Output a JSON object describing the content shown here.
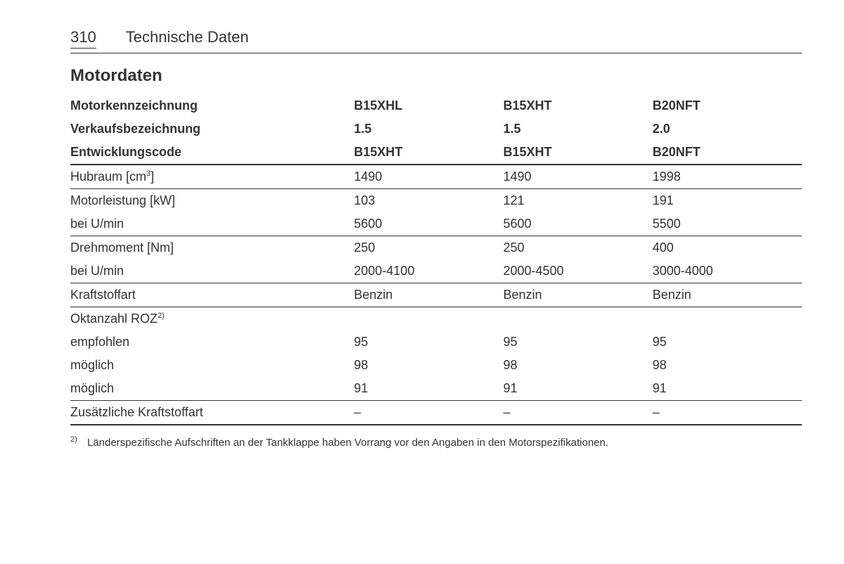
{
  "header": {
    "page_number": "310",
    "chapter": "Technische Daten"
  },
  "section_title": "Motordaten",
  "table": {
    "columns": [
      "",
      "B15XHL",
      "B15XHT",
      "B20NFT"
    ],
    "column_widths_pct": [
      38,
      20,
      20,
      22
    ],
    "text_color": "#333333",
    "background_color": "#ffffff",
    "border_color": "#333333",
    "font_size_pt": 13.5,
    "header_rows": [
      {
        "label": "Motorkennzeichnung",
        "v1": "B15XHL",
        "v2": "B15XHT",
        "v3": "B20NFT",
        "bold": true,
        "border": "none"
      },
      {
        "label": "Verkaufsbezeichnung",
        "v1": "1.5",
        "v2": "1.5",
        "v3": "2.0",
        "bold": true,
        "border": "none"
      },
      {
        "label": "Entwicklungscode",
        "v1": "B15XHT",
        "v2": "B15XHT",
        "v3": "B20NFT",
        "bold": true,
        "border": "thick"
      }
    ],
    "rows": [
      {
        "label_html": "Hubraum [cm<sup>3</sup>]",
        "label": "Hubraum [cm3]",
        "v1": "1490",
        "v2": "1490",
        "v3": "1998",
        "border": "thin"
      },
      {
        "label": "Motorleistung [kW]",
        "v1": "103",
        "v2": "121",
        "v3": "191",
        "border": "none"
      },
      {
        "label": "bei U/min",
        "v1": "5600",
        "v2": "5600",
        "v3": "5500",
        "border": "thin"
      },
      {
        "label": "Drehmoment [Nm]",
        "v1": "250",
        "v2": "250",
        "v3": "400",
        "border": "none"
      },
      {
        "label": "bei U/min",
        "v1": "2000-4100",
        "v2": "2000-4500",
        "v3": "3000-4000",
        "border": "thin"
      },
      {
        "label": "Kraftstoffart",
        "v1": "Benzin",
        "v2": "Benzin",
        "v3": "Benzin",
        "border": "thin"
      },
      {
        "label_html": "Oktanzahl ROZ<sup>2)</sup>",
        "label": "Oktanzahl ROZ2)",
        "v1": "",
        "v2": "",
        "v3": "",
        "border": "none"
      },
      {
        "label": "empfohlen",
        "v1": "95",
        "v2": "95",
        "v3": "95",
        "border": "none"
      },
      {
        "label": "möglich",
        "v1": "98",
        "v2": "98",
        "v3": "98",
        "border": "none"
      },
      {
        "label": "möglich",
        "v1": "91",
        "v2": "91",
        "v3": "91",
        "border": "thin"
      },
      {
        "label": "Zusätzliche Kraftstoffart",
        "v1": "–",
        "v2": "–",
        "v3": "–",
        "border": "thick"
      }
    ]
  },
  "footnote": {
    "num": "2)",
    "text": "Länderspezifische Aufschriften an der Tankklappe haben Vorrang vor den Angaben in den Motorspezifikationen."
  }
}
